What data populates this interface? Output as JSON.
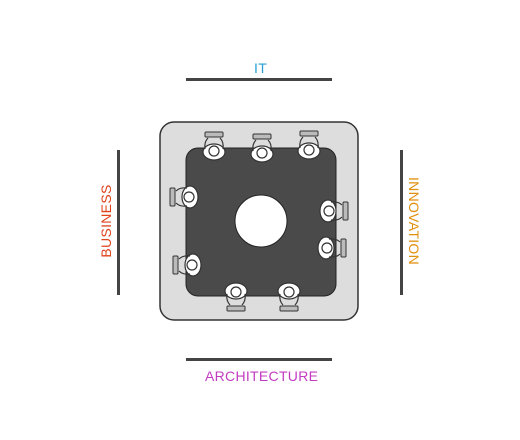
{
  "sides": {
    "top": {
      "label": "IT",
      "color": "#2a9fd6"
    },
    "bottom": {
      "label": "ARCHITECTURE",
      "color": "#c23cc2"
    },
    "left": {
      "label": "BUSINESS",
      "color": "#e0431e"
    },
    "right": {
      "label": "INNOVATION",
      "color": "#e0900e"
    }
  },
  "colors": {
    "table_surround": "#dddddd",
    "table_top": "#4a4a4a",
    "center_hole": "#ffffff",
    "person": "#ffffff",
    "laptop": "#bbbbbb"
  },
  "icons": [
    "person-with-laptop-icon"
  ]
}
